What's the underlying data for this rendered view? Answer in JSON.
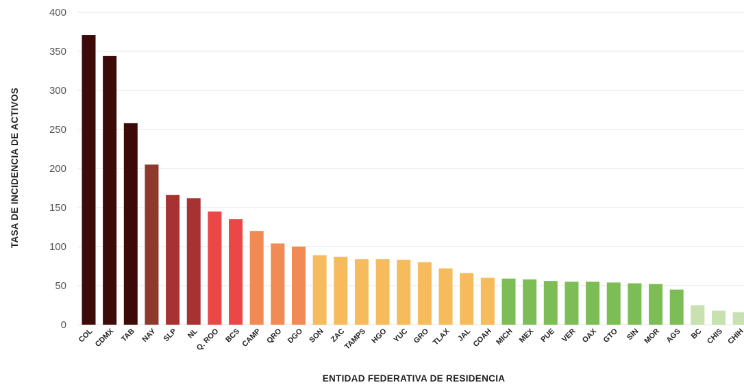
{
  "chart_data": {
    "type": "bar",
    "title": "",
    "xlabel": "ENTIDAD FEDERATIVA DE RESIDENCIA",
    "ylabel": "TASA DE INCIDENCIA DE ACTIVOS",
    "ylim": [
      0,
      400
    ],
    "yticks": [
      0,
      50,
      100,
      150,
      200,
      250,
      300,
      350,
      400
    ],
    "grid": true,
    "categories": [
      "COL",
      "CDMX",
      "TAB",
      "NAY",
      "SLP",
      "NL",
      "Q. ROO",
      "BCS",
      "CAMP",
      "QRO",
      "DGO",
      "SON",
      "ZAC",
      "TAMPS",
      "HGO",
      "YUC",
      "GRO",
      "TLAX",
      "JAL",
      "COAH",
      "MICH",
      "MEX",
      "PUE",
      "VER",
      "OAX",
      "GTO",
      "SIN",
      "MOR",
      "AGS",
      "BC",
      "CHIS",
      "CHIH"
    ],
    "values": [
      371,
      344,
      258,
      205,
      166,
      162,
      145,
      135,
      120,
      104,
      100,
      89,
      87,
      84,
      84,
      83,
      80,
      72,
      66,
      60,
      59,
      58,
      56,
      55,
      55,
      54,
      53,
      52,
      45,
      25,
      18,
      16
    ],
    "colors": [
      "#3d0a0a",
      "#3d0a0a",
      "#3d0a0a",
      "#8b3a2c",
      "#a83232",
      "#a83232",
      "#ec4747",
      "#ec4747",
      "#f28a55",
      "#f28a55",
      "#f28a55",
      "#f5bb5c",
      "#f5bb5c",
      "#f5bb5c",
      "#f5bb5c",
      "#f5bb5c",
      "#f5bb5c",
      "#f5bb5c",
      "#f5bb5c",
      "#f5bb5c",
      "#7cbe55",
      "#7cbe55",
      "#7cbe55",
      "#7cbe55",
      "#7cbe55",
      "#7cbe55",
      "#7cbe55",
      "#7cbe55",
      "#7cbe55",
      "#c7e1b0",
      "#c7e1b0",
      "#c7e1b0"
    ]
  }
}
